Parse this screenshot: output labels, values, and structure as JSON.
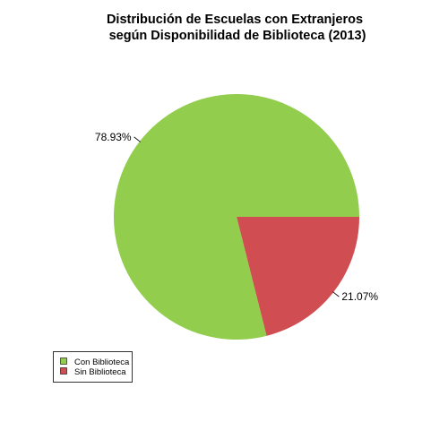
{
  "chart_data": {
    "type": "pie",
    "title_line1": "Distribución de Escuelas con Extranjeros",
    "title_line2": "según Disponibilidad de Biblioteca (2013)",
    "slices": [
      {
        "name": "Sin Biblioteca",
        "value": 21.07,
        "label": "21.07%",
        "color": "#D04E52"
      },
      {
        "name": "Con Biblioteca",
        "value": 78.93,
        "label": "78.93%",
        "color": "#92CD4E"
      }
    ],
    "legend": {
      "position": "bottom-left",
      "entries": [
        {
          "name": "Con Biblioteca",
          "color": "#92CD4E"
        },
        {
          "name": "Sin Biblioteca",
          "color": "#D04E52"
        }
      ]
    }
  }
}
